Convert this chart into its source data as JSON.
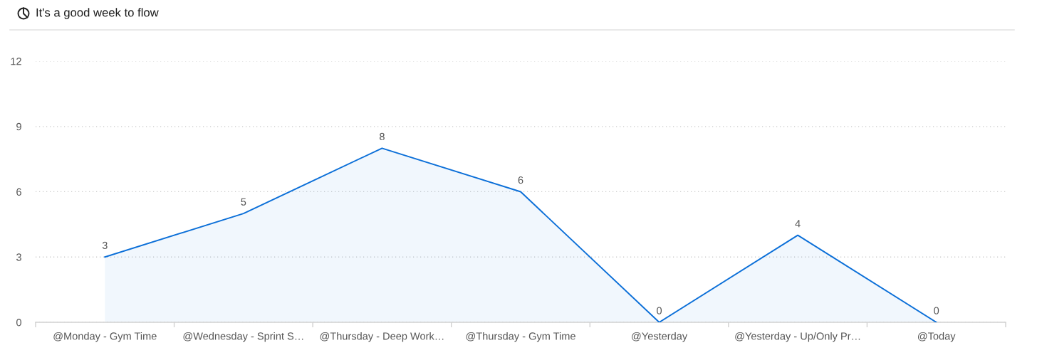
{
  "chart_data": {
    "type": "area",
    "title": "It's a good week to flow",
    "categories": [
      "@Monday - Gym Time",
      "@Wednesday - Sprint S…",
      "@Thursday - Deep Work…",
      "@Thursday - Gym Time",
      "@Yesterday",
      "@Yesterday - Up/Only Pr…",
      "@Today"
    ],
    "series": [
      {
        "color": "#0b6fd8",
        "values": [
          3,
          5,
          8,
          6,
          0,
          4,
          0
        ]
      }
    ],
    "ylim": [
      0,
      12
    ],
    "yticks": [
      0,
      3,
      6,
      9,
      12
    ],
    "grid": "y",
    "data_labels": true,
    "line_style": "solid"
  }
}
